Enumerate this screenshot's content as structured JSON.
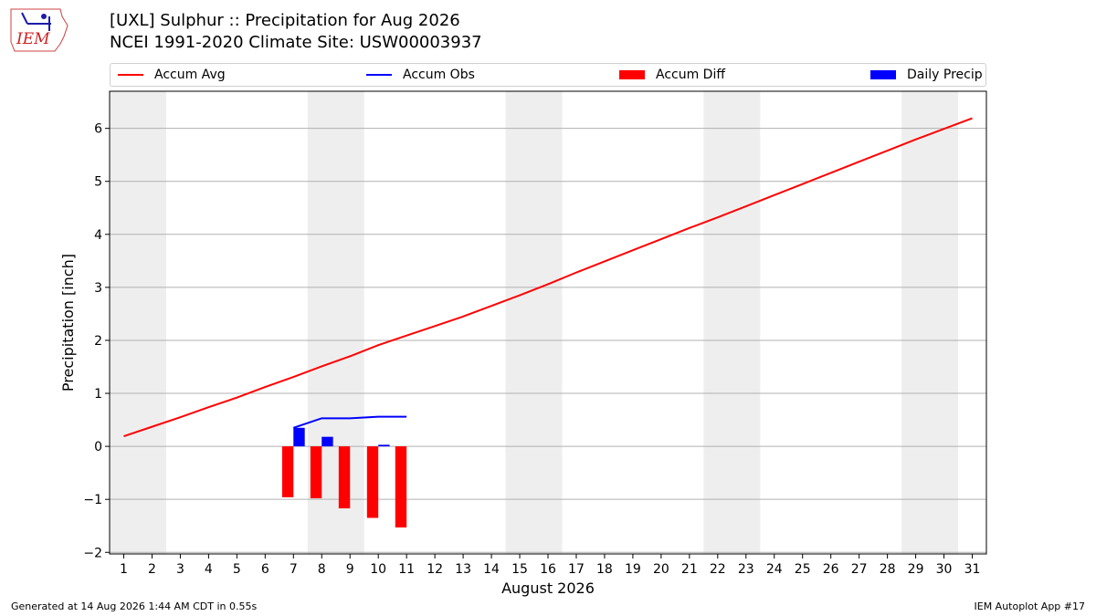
{
  "header": {
    "logo_text": "IEM",
    "title_line1": "[UXL] Sulphur :: Precipitation for Aug 2026",
    "title_line2": "NCEI 1991-2020 Climate Site: USW00003937"
  },
  "legend": {
    "items": [
      {
        "label": "Accum Avg",
        "kind": "line",
        "color": "#ff0000"
      },
      {
        "label": "Accum Obs",
        "kind": "line",
        "color": "#0000ff"
      },
      {
        "label": "Accum Diff",
        "kind": "bar",
        "color": "#ff0000"
      },
      {
        "label": "Daily Precip",
        "kind": "bar",
        "color": "#0000ff"
      }
    ]
  },
  "footer": {
    "left": "Generated at 14 Aug 2026 1:44 AM CDT in 0.55s",
    "right": "IEM Autoplot App #17"
  },
  "chart_data": {
    "type": "bar",
    "xlabel": "August 2026",
    "ylabel": "Precipitation [inch]",
    "x": [
      1,
      2,
      3,
      4,
      5,
      6,
      7,
      8,
      9,
      10,
      11,
      12,
      13,
      14,
      15,
      16,
      17,
      18,
      19,
      20,
      21,
      22,
      23,
      24,
      25,
      26,
      27,
      28,
      29,
      30,
      31
    ],
    "xlim": [
      0.5,
      31.5
    ],
    "ylim": [
      -2.03,
      6.7
    ],
    "yticks": [
      -2,
      -1,
      0,
      1,
      2,
      3,
      4,
      5,
      6
    ],
    "ytick_labels": [
      "−2",
      "−1",
      "0",
      "1",
      "2",
      "3",
      "4",
      "5",
      "6"
    ],
    "grid": "horizontal",
    "legend_position": "top",
    "weekend_shading": [
      [
        0.5,
        2.5
      ],
      [
        7.5,
        9.5
      ],
      [
        14.5,
        16.5
      ],
      [
        21.5,
        23.5
      ],
      [
        28.5,
        30.5
      ]
    ],
    "shade_color": "#eeeeee",
    "series": [
      {
        "name": "Accum Avg",
        "type": "line",
        "color": "#ff0000",
        "x": [
          1,
          2,
          3,
          4,
          5,
          6,
          7,
          8,
          9,
          10,
          11,
          12,
          13,
          14,
          15,
          16,
          17,
          18,
          19,
          20,
          21,
          22,
          23,
          24,
          25,
          26,
          27,
          28,
          29,
          30,
          31
        ],
        "values": [
          0.19,
          0.37,
          0.55,
          0.74,
          0.92,
          1.12,
          1.31,
          1.51,
          1.7,
          1.91,
          2.09,
          2.27,
          2.45,
          2.65,
          2.85,
          3.06,
          3.28,
          3.49,
          3.7,
          3.91,
          4.12,
          4.32,
          4.53,
          4.74,
          4.95,
          5.16,
          5.37,
          5.58,
          5.79,
          5.99,
          6.19
        ]
      },
      {
        "name": "Accum Obs",
        "type": "line",
        "color": "#0000ff",
        "x": [
          7,
          8,
          9,
          10,
          11
        ],
        "values": [
          0.35,
          0.53,
          0.53,
          0.56,
          0.56
        ]
      },
      {
        "name": "Accum Diff",
        "type": "bar",
        "color": "#ff0000",
        "x": [
          7,
          8,
          9,
          10,
          11
        ],
        "values": [
          -0.96,
          -0.98,
          -1.17,
          -1.35,
          -1.53
        ]
      },
      {
        "name": "Daily Precip",
        "type": "bar",
        "color": "#0000ff",
        "x": [
          7,
          8,
          9,
          10,
          11
        ],
        "values": [
          0.35,
          0.18,
          0.0,
          0.03,
          0.0
        ]
      }
    ]
  }
}
